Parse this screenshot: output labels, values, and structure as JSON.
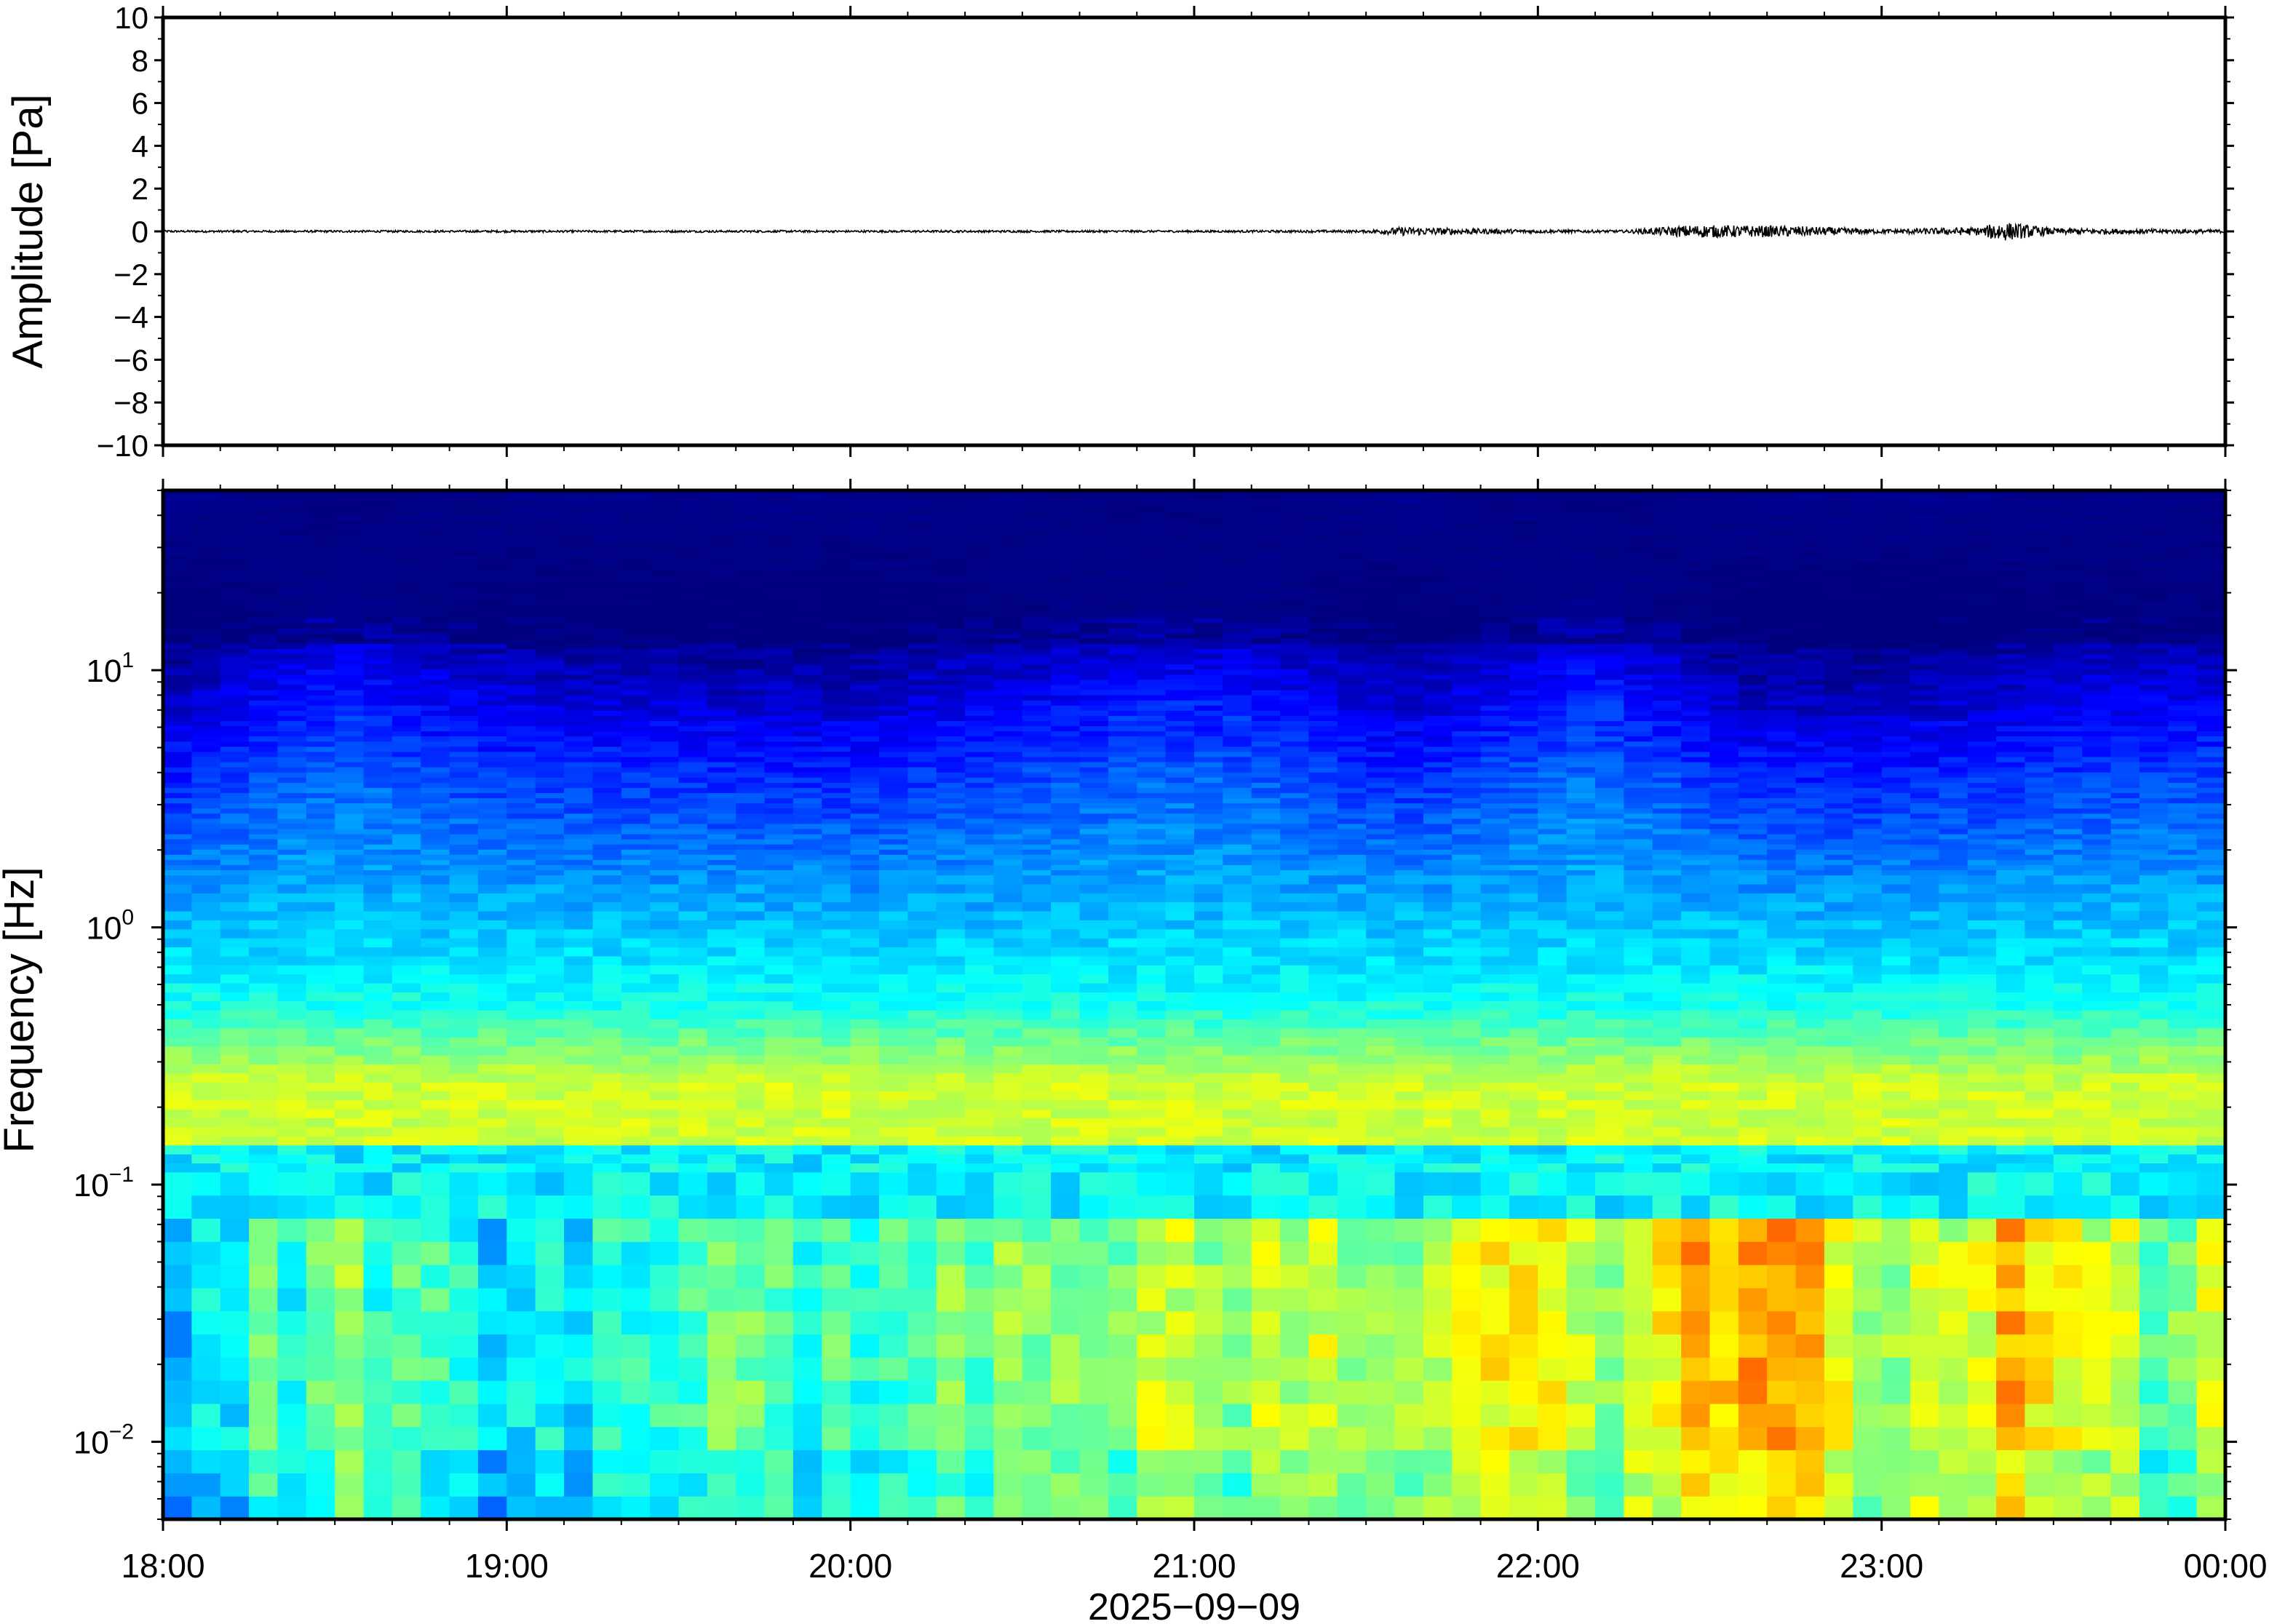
{
  "chart_data": [
    {
      "type": "line",
      "panel": "waveform",
      "ylabel": "Amplitude [Pa]",
      "ylim": [
        -10,
        10
      ],
      "yticks": [
        10,
        8,
        6,
        4,
        2,
        0,
        -2,
        -4,
        -6,
        -8,
        -10
      ],
      "ytick_labels": [
        "10",
        "8",
        "6",
        "4",
        "2",
        "0",
        "−2",
        "−4",
        "−6",
        "−8",
        "−10"
      ],
      "xlim_hours": [
        18,
        24
      ],
      "series": [
        {
          "x_hours": [
            18.0,
            18.5,
            19.0,
            19.5,
            20.0,
            20.5,
            21.0,
            21.5,
            21.6,
            22.0,
            22.25,
            22.45,
            22.75,
            23.0,
            23.3,
            23.33,
            23.5,
            24.0
          ],
          "envelope": [
            0.05,
            0.05,
            0.05,
            0.05,
            0.05,
            0.05,
            0.05,
            0.06,
            0.2,
            0.08,
            0.06,
            0.3,
            0.25,
            0.1,
            0.2,
            0.5,
            0.15,
            0.08
          ],
          "color": "#000000"
        }
      ]
    },
    {
      "type": "heatmap",
      "panel": "spectrogram",
      "ylabel": "Frequency [Hz]",
      "yscale": "log",
      "ylim": [
        0.005,
        50
      ],
      "yticks": [
        0.01,
        0.1,
        1,
        10
      ],
      "ytick_labels": [
        {
          "base": "10",
          "exp": "−2"
        },
        {
          "base": "10",
          "exp": "−1"
        },
        {
          "base": "10",
          "exp": "0"
        },
        {
          "base": "10",
          "exp": "1"
        }
      ],
      "xlim_hours": [
        18,
        24
      ],
      "xticks_hours": [
        18,
        19,
        20,
        21,
        22,
        23,
        24
      ],
      "xtick_labels": [
        "18:00",
        "19:00",
        "20:00",
        "21:00",
        "22:00",
        "23:00",
        "00:00"
      ],
      "xlabel": "2025−09−09",
      "colormap": "jet",
      "colors": [
        "#00007f",
        "#0000ff",
        "#0080ff",
        "#00ffff",
        "#80ff80",
        "#ffff00",
        "#ff8000",
        "#ff0000"
      ],
      "low_freq_activity": [
        {
          "t": 18.0,
          "level": 0.35
        },
        {
          "t": 18.5,
          "level": 0.55
        },
        {
          "t": 19.0,
          "level": 0.4
        },
        {
          "t": 19.5,
          "level": 0.52
        },
        {
          "t": 20.0,
          "level": 0.5
        },
        {
          "t": 20.7,
          "level": 0.62
        },
        {
          "t": 21.0,
          "level": 0.6
        },
        {
          "t": 21.5,
          "level": 0.62
        },
        {
          "t": 21.9,
          "level": 0.72
        },
        {
          "t": 22.2,
          "level": 0.6
        },
        {
          "t": 22.5,
          "level": 0.82
        },
        {
          "t": 22.8,
          "level": 0.8
        },
        {
          "t": 23.0,
          "level": 0.6
        },
        {
          "t": 23.35,
          "level": 0.76
        },
        {
          "t": 23.55,
          "level": 0.74
        },
        {
          "t": 23.8,
          "level": 0.55
        },
        {
          "t": 24.0,
          "level": 0.7
        }
      ],
      "high_freq_activity": [
        {
          "t": 18.0,
          "level": 0.3
        },
        {
          "t": 18.5,
          "level": 0.75
        },
        {
          "t": 19.0,
          "level": 0.45
        },
        {
          "t": 20.0,
          "level": 0.35
        },
        {
          "t": 20.9,
          "level": 0.7
        },
        {
          "t": 21.2,
          "level": 0.65
        },
        {
          "t": 21.6,
          "level": 0.35
        },
        {
          "t": 22.15,
          "level": 0.78
        },
        {
          "t": 22.6,
          "level": 0.35
        },
        {
          "t": 23.0,
          "level": 0.3
        },
        {
          "t": 23.6,
          "level": 0.5
        },
        {
          "t": 24.0,
          "level": 0.55
        }
      ]
    }
  ]
}
